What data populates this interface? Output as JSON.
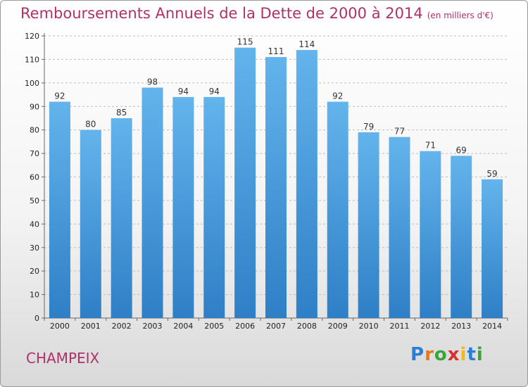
{
  "header": {
    "title": "Remboursements Annuels de la Dette de 2000 à 2014",
    "subtitle": "(en milliers d'€)"
  },
  "footer": {
    "place": "CHAMPEIX",
    "logo_text": "Proxiti"
  },
  "colors": {
    "title": "#b0306a",
    "bar_top": "#63b4ec",
    "bar_bottom": "#2e7fc6"
  },
  "chart_data": {
    "type": "bar",
    "categories": [
      "2000",
      "2001",
      "2002",
      "2003",
      "2004",
      "2005",
      "2006",
      "2007",
      "2008",
      "2009",
      "2010",
      "2011",
      "2012",
      "2013",
      "2014"
    ],
    "values": [
      92,
      80,
      85,
      98,
      94,
      94,
      115,
      111,
      114,
      92,
      79,
      77,
      71,
      69,
      59
    ],
    "title": "Remboursements Annuels de la Dette de 2000 à 2014",
    "subtitle": "(en milliers d'€)",
    "ylim": [
      0,
      120
    ],
    "yticks": [
      0,
      10,
      20,
      30,
      40,
      50,
      60,
      70,
      80,
      90,
      100,
      110,
      120
    ],
    "grid": "horizontal dashed",
    "data_labels": true
  }
}
